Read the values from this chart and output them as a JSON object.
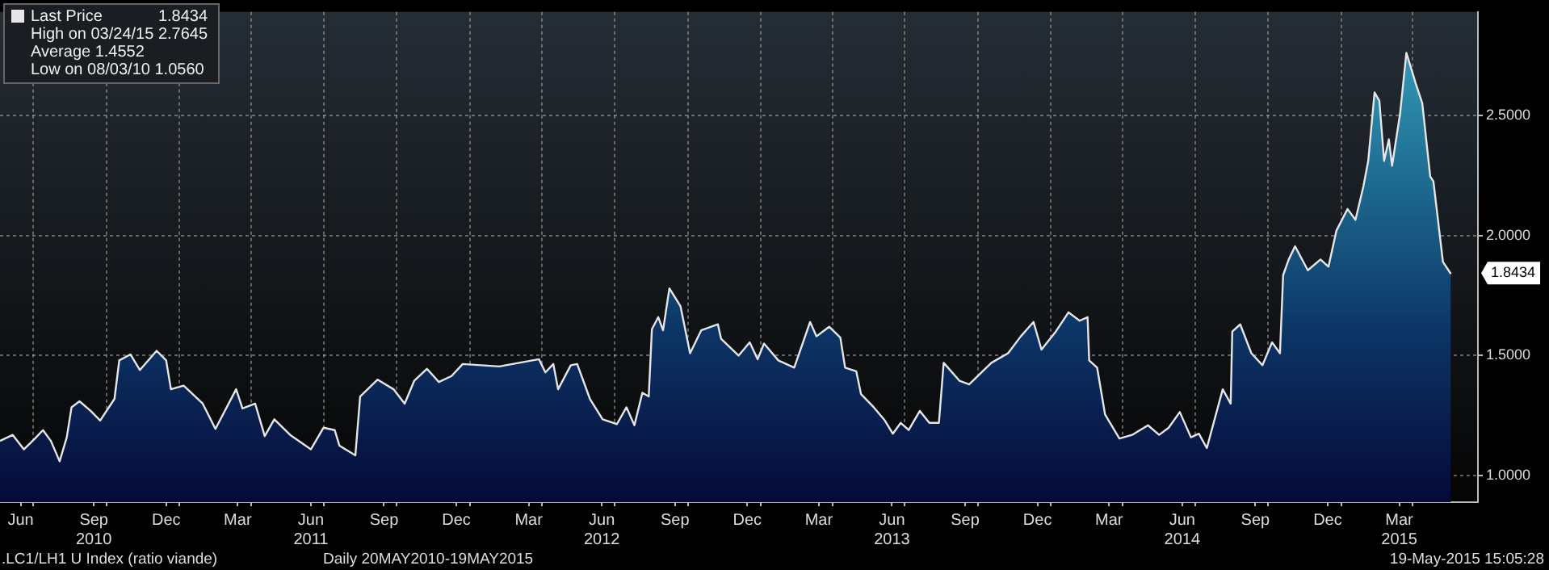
{
  "chart_data": {
    "type": "area",
    "x": [
      "2010-05-20",
      "2010-06-05",
      "2010-06-19",
      "2010-07-03",
      "2010-07-13",
      "2010-07-23",
      "2010-08-03",
      "2010-08-12",
      "2010-08-18",
      "2010-08-28",
      "2010-09-11",
      "2010-09-23",
      "2010-10-11",
      "2010-10-17",
      "2010-10-31",
      "2010-11-12",
      "2010-12-03",
      "2010-12-15",
      "2010-12-21",
      "2011-01-06",
      "2011-01-30",
      "2011-02-15",
      "2011-03-13",
      "2011-03-21",
      "2011-04-06",
      "2011-04-18",
      "2011-04-30",
      "2011-05-20",
      "2011-06-15",
      "2011-07-01",
      "2011-07-15",
      "2011-07-21",
      "2011-08-10",
      "2011-08-16",
      "2011-09-07",
      "2011-09-27",
      "2011-10-11",
      "2011-10-23",
      "2011-11-08",
      "2011-11-23",
      "2011-12-09",
      "2011-12-23",
      "2012-02-07",
      "2012-03-28",
      "2012-04-05",
      "2012-04-15",
      "2012-04-21",
      "2012-05-07",
      "2012-05-15",
      "2012-05-31",
      "2012-06-16",
      "2012-07-04",
      "2012-07-16",
      "2012-07-26",
      "2012-08-05",
      "2012-08-13",
      "2012-08-17",
      "2012-08-25",
      "2012-08-31",
      "2012-09-08",
      "2012-09-22",
      "2012-10-04",
      "2012-10-18",
      "2012-11-08",
      "2012-11-12",
      "2012-12-04",
      "2012-12-18",
      "2012-12-28",
      "2013-01-05",
      "2013-01-23",
      "2013-02-12",
      "2013-03-04",
      "2013-03-12",
      "2013-03-28",
      "2013-04-11",
      "2013-04-17",
      "2013-05-01",
      "2013-05-07",
      "2013-05-23",
      "2013-06-06",
      "2013-06-16",
      "2013-06-26",
      "2013-07-06",
      "2013-07-20",
      "2013-08-01",
      "2013-08-13",
      "2013-08-19",
      "2013-09-08",
      "2013-09-20",
      "2013-10-18",
      "2013-11-08",
      "2013-11-24",
      "2013-12-10",
      "2013-12-20",
      "2014-01-07",
      "2014-01-23",
      "2014-02-06",
      "2014-02-16",
      "2014-02-18",
      "2014-02-28",
      "2014-03-10",
      "2014-03-28",
      "2014-04-13",
      "2014-05-03",
      "2014-05-17",
      "2014-05-29",
      "2014-06-12",
      "2014-06-26",
      "2014-07-06",
      "2014-07-16",
      "2014-08-05",
      "2014-08-15",
      "2014-08-17",
      "2014-08-27",
      "2014-09-10",
      "2014-09-24",
      "2014-10-06",
      "2014-10-16",
      "2014-10-20",
      "2014-10-27",
      "2014-11-04",
      "2014-11-20",
      "2014-12-06",
      "2014-12-16",
      "2014-12-26",
      "2015-01-09",
      "2015-01-19",
      "2015-01-29",
      "2015-02-04",
      "2015-02-12",
      "2015-02-18",
      "2015-02-24",
      "2015-03-02",
      "2015-03-06",
      "2015-03-16",
      "2015-03-24",
      "2015-04-05",
      "2015-04-13",
      "2015-04-23",
      "2015-04-27",
      "2015-05-09",
      "2015-05-19"
    ],
    "series": [
      {
        "name": "Last Price",
        "color": "#e6e6e6",
        "values": [
          1.145,
          1.17,
          1.11,
          1.155,
          1.19,
          1.145,
          1.06,
          1.16,
          1.285,
          1.31,
          1.27,
          1.23,
          1.32,
          1.48,
          1.505,
          1.44,
          1.52,
          1.48,
          1.36,
          1.375,
          1.3,
          1.195,
          1.36,
          1.28,
          1.3,
          1.165,
          1.235,
          1.17,
          1.11,
          1.2,
          1.19,
          1.125,
          1.085,
          1.33,
          1.4,
          1.36,
          1.3,
          1.395,
          1.445,
          1.39,
          1.415,
          1.465,
          1.455,
          1.485,
          1.43,
          1.465,
          1.36,
          1.46,
          1.465,
          1.32,
          1.235,
          1.215,
          1.285,
          1.21,
          1.345,
          1.33,
          1.61,
          1.66,
          1.605,
          1.78,
          1.705,
          1.51,
          1.605,
          1.63,
          1.57,
          1.5,
          1.555,
          1.485,
          1.55,
          1.48,
          1.45,
          1.64,
          1.58,
          1.62,
          1.575,
          1.45,
          1.435,
          1.34,
          1.285,
          1.23,
          1.175,
          1.22,
          1.19,
          1.27,
          1.22,
          1.22,
          1.47,
          1.395,
          1.38,
          1.47,
          1.51,
          1.58,
          1.64,
          1.525,
          1.6,
          1.68,
          1.645,
          1.66,
          1.48,
          1.45,
          1.255,
          1.155,
          1.17,
          1.21,
          1.17,
          1.2,
          1.265,
          1.16,
          1.175,
          1.115,
          1.36,
          1.3,
          1.6,
          1.63,
          1.51,
          1.46,
          1.555,
          1.51,
          1.835,
          1.9,
          1.955,
          1.855,
          1.9,
          1.87,
          2.02,
          2.11,
          2.065,
          2.205,
          2.31,
          2.595,
          2.56,
          2.31,
          2.4,
          2.29,
          2.505,
          2.76,
          2.63,
          2.55,
          2.245,
          2.225,
          1.89,
          1.84
        ]
      }
    ],
    "xlim": [
      "2010-05-20",
      "2015-06-22"
    ],
    "ylim": [
      0.89,
      2.93
    ],
    "yticks": [
      {
        "value": 1,
        "label": "1.0000"
      },
      {
        "value": 1.5,
        "label": "1.5000"
      },
      {
        "value": 2,
        "label": "2.0000"
      },
      {
        "value": 2.5,
        "label": "2.5000"
      }
    ],
    "xticks": [
      {
        "value": "2010-06-15",
        "label": "Jun"
      },
      {
        "value": "2010-07-01",
        "label": null
      },
      {
        "value": "2010-09-15",
        "label": "Sep\n2010"
      },
      {
        "value": "2010-10-01",
        "label": null
      },
      {
        "value": "2010-12-15",
        "label": "Dec"
      },
      {
        "value": "2011-01-01",
        "label": null
      },
      {
        "value": "2011-03-15",
        "label": "Mar"
      },
      {
        "value": "2011-04-01",
        "label": null
      },
      {
        "value": "2011-06-15",
        "label": "Jun\n2011"
      },
      {
        "value": "2011-07-01",
        "label": null
      },
      {
        "value": "2011-09-15",
        "label": "Sep"
      },
      {
        "value": "2011-10-01",
        "label": null
      },
      {
        "value": "2011-12-15",
        "label": "Dec"
      },
      {
        "value": "2012-01-01",
        "label": null
      },
      {
        "value": "2012-03-15",
        "label": "Mar"
      },
      {
        "value": "2012-04-01",
        "label": null
      },
      {
        "value": "2012-06-15",
        "label": "Jun\n2012"
      },
      {
        "value": "2012-07-01",
        "label": null
      },
      {
        "value": "2012-09-15",
        "label": "Sep"
      },
      {
        "value": "2012-10-01",
        "label": null
      },
      {
        "value": "2012-12-15",
        "label": "Dec"
      },
      {
        "value": "2013-01-01",
        "label": null
      },
      {
        "value": "2013-03-15",
        "label": "Mar"
      },
      {
        "value": "2013-04-01",
        "label": null
      },
      {
        "value": "2013-06-15",
        "label": "Jun\n2013"
      },
      {
        "value": "2013-07-01",
        "label": null
      },
      {
        "value": "2013-09-15",
        "label": "Sep"
      },
      {
        "value": "2013-10-01",
        "label": null
      },
      {
        "value": "2013-12-15",
        "label": "Dec"
      },
      {
        "value": "2014-01-01",
        "label": null
      },
      {
        "value": "2014-03-15",
        "label": "Mar"
      },
      {
        "value": "2014-04-01",
        "label": null
      },
      {
        "value": "2014-06-15",
        "label": "Jun\n2014"
      },
      {
        "value": "2014-07-01",
        "label": null
      },
      {
        "value": "2014-09-15",
        "label": "Sep"
      },
      {
        "value": "2014-10-01",
        "label": null
      },
      {
        "value": "2014-12-15",
        "label": "Dec"
      },
      {
        "value": "2015-01-01",
        "label": null
      },
      {
        "value": "2015-03-15",
        "label": "Mar\n2015"
      },
      {
        "value": "2015-04-01",
        "label": null
      }
    ],
    "grid": true,
    "legend": "top left",
    "annotations": [
      {
        "text": "1.8434",
        "x": "2015-05-19",
        "y": 1.8434
      },
      "High on 03/24/15 2.7645",
      "Average 1.4552",
      "Low on 08/03/10 1.0560",
      ".LC1/LH1 U Index (ratio viande)",
      "Daily 20MAY2010-19MAY2015",
      "19-May-2015 15:05:28"
    ]
  }
}
